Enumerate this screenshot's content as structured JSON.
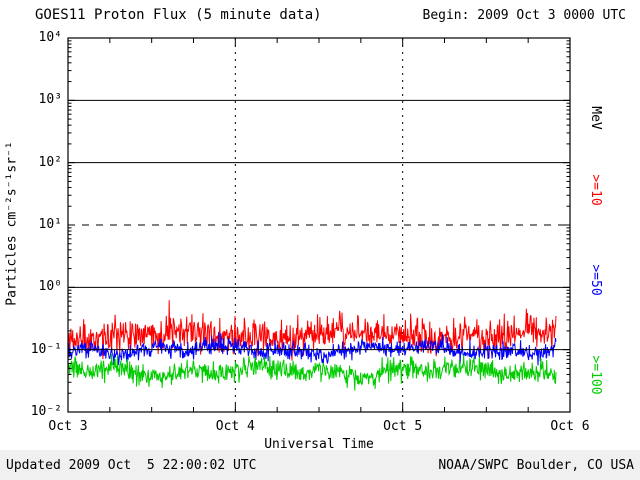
{
  "header": {
    "title": "GOES11 Proton Flux (5 minute data)",
    "begin_label": "Begin: 2009 Oct 3 0000 UTC"
  },
  "footer": {
    "updated": "Updated 2009 Oct  5 22:00:02 UTC",
    "credit": "NOAA/SWPC Boulder, CO USA"
  },
  "chart_data": {
    "type": "line",
    "title": "GOES11 Proton Flux (5 minute data)",
    "begin": "2009 Oct 3 0000 UTC",
    "updated": "2009 Oct 5 22:00:02 UTC",
    "xlabel": "Universal Time",
    "ylabel": "Particles cm⁻²s⁻¹sr⁻¹",
    "right_axis_label": "MeV",
    "x_ticks": [
      "Oct 3",
      "Oct 4",
      "Oct 5",
      "Oct 6"
    ],
    "y_ticks": [
      "10⁴",
      "10³",
      "10²",
      "10¹",
      "10⁰",
      "10⁻¹",
      "10⁻²"
    ],
    "y_exponents": [
      4,
      3,
      2,
      1,
      0,
      -1,
      -2
    ],
    "ylim_exp": [
      -2,
      4
    ],
    "x_range_days": 3,
    "points_per_day": 288,
    "data_end_day_fraction": 0.9722,
    "x_minor_tick_hours": 6,
    "grid": "horizontal reference lines at decades; dotted vertical lines at day boundaries",
    "legend_position": "right",
    "axis_color": "#000000",
    "background_color": "#ffffff",
    "h_reflines": [
      {
        "exp": 3,
        "style": "solid"
      },
      {
        "exp": 2,
        "style": "solid"
      },
      {
        "exp": 1,
        "style": "dashed"
      },
      {
        "exp": 0,
        "style": "solid"
      },
      {
        "exp": -1,
        "style": "solid"
      }
    ],
    "v_gridlines_day": [
      1,
      2
    ],
    "series": [
      {
        "id": "ge10",
        "label": ">=10",
        "threshold_mev": 10,
        "color": "#ff0000",
        "base_flux": 0.17,
        "approx_flux_range": [
          0.07,
          0.5
        ],
        "log_sigma": 0.13,
        "spike_prob": 0.05,
        "spike_mag": 0.35,
        "seed": 11
      },
      {
        "id": "ge50",
        "label": ">=50",
        "threshold_mev": 50,
        "color": "#0000ff",
        "base_flux": 0.1,
        "approx_flux_range": [
          0.06,
          0.2
        ],
        "log_sigma": 0.07,
        "spike_prob": 0.02,
        "spike_mag": 0.15,
        "seed": 22
      },
      {
        "id": "ge100",
        "label": ">=100",
        "threshold_mev": 100,
        "color": "#00cc00",
        "base_flux": 0.045,
        "approx_flux_range": [
          0.03,
          0.09
        ],
        "log_sigma": 0.09,
        "spike_prob": 0.0,
        "spike_mag": 0.0,
        "seed": 33
      }
    ]
  }
}
